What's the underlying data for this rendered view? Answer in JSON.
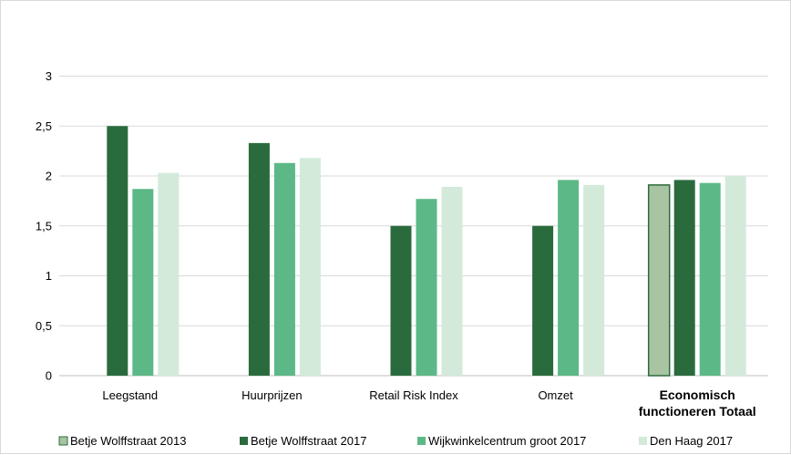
{
  "chart_data": {
    "type": "bar",
    "categories": [
      {
        "lines": [
          "Leegstand"
        ],
        "bold": false
      },
      {
        "lines": [
          "Huurprijzen"
        ],
        "bold": false
      },
      {
        "lines": [
          "Retail Risk Index"
        ],
        "bold": false
      },
      {
        "lines": [
          "Omzet"
        ],
        "bold": false
      },
      {
        "lines": [
          "Economisch",
          "functioneren Totaal"
        ],
        "bold": true
      }
    ],
    "series": [
      {
        "name": "Betje Wolffstraat 2013",
        "color": "#a9c4a3",
        "stroke": "#2e6b3f",
        "values": [
          null,
          null,
          null,
          null,
          1.91
        ]
      },
      {
        "name": "Betje Wolffstraat 2017",
        "color": "#2a6b3d",
        "values": [
          2.5,
          2.33,
          1.5,
          1.5,
          1.96
        ]
      },
      {
        "name": "Wijkwinkelcentrum groot 2017",
        "color": "#5cb887",
        "values": [
          1.87,
          2.13,
          1.77,
          1.96,
          1.93
        ]
      },
      {
        "name": "Den Haag 2017",
        "color": "#d3eadb",
        "values": [
          2.03,
          2.18,
          1.89,
          1.91,
          2.0
        ]
      }
    ],
    "yticks": [
      "0",
      "0,5",
      "1",
      "1,5",
      "2",
      "2,5",
      "3"
    ],
    "ylim": [
      0,
      3
    ],
    "ystep": 0.5,
    "grid": true,
    "legend": "bottom"
  }
}
